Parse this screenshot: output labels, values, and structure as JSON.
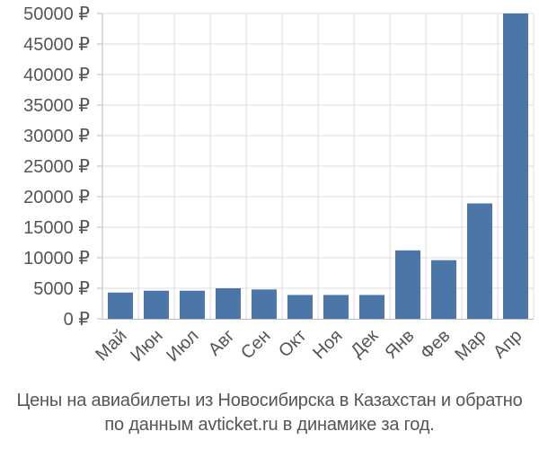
{
  "colors": {
    "bar": "#4d76a8",
    "grid": "#dddddd",
    "axis": "#bbbbbb",
    "text": "#555555"
  },
  "caption": {
    "line1": "Цены на авиабилеты из Новосибирска в Казахстан и обратно",
    "line2": "по данным avticket.ru в динамике за год."
  },
  "chart_data": {
    "type": "bar",
    "categories": [
      "Май",
      "Июн",
      "Июл",
      "Авг",
      "Сен",
      "Окт",
      "Ноя",
      "Дек",
      "Янв",
      "Фев",
      "Мар",
      "Апр"
    ],
    "values": [
      4300,
      4600,
      4600,
      5000,
      4800,
      3900,
      3900,
      3900,
      11200,
      9600,
      18900,
      50000
    ],
    "yticks": [
      "0 ₽",
      "5000 ₽",
      "10000 ₽",
      "15000 ₽",
      "20000 ₽",
      "25000 ₽",
      "30000 ₽",
      "35000 ₽",
      "40000 ₽",
      "45000 ₽",
      "50000 ₽"
    ],
    "ylim": [
      0,
      50000
    ],
    "ystep": 5000,
    "grid": true,
    "legend": "none"
  }
}
